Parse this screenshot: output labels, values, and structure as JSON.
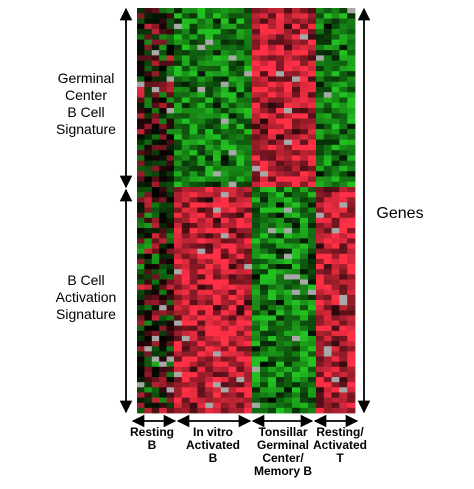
{
  "chart_data": {
    "type": "heatmap",
    "title": "",
    "xlabel": "",
    "ylabel": "Genes",
    "row_groups": [
      {
        "name": [
          "Germinal",
          "Center",
          "B Cell",
          "Signature"
        ],
        "pattern": "gc"
      },
      {
        "name": [
          "B Cell",
          "Activation",
          "Signature"
        ],
        "pattern": "act"
      }
    ],
    "column_groups": [
      {
        "name": [
          "Resting",
          "B"
        ],
        "key": "resting_b"
      },
      {
        "name": [
          "In vitro",
          "Activated",
          "B"
        ],
        "key": "invitro_b"
      },
      {
        "name": [
          "Tonsillar",
          "Germinal",
          "Center/",
          "Memory B"
        ],
        "key": "gc_mem_b"
      },
      {
        "name": [
          "Resting/",
          "Activated",
          "T"
        ],
        "key": "rest_act_t"
      }
    ],
    "group_expression": {
      "gc": {
        "resting_b": "mixed",
        "invitro_b": "low",
        "gc_mem_b": "high",
        "rest_act_t": "low"
      },
      "act": {
        "resting_b": "mixed",
        "invitro_b": "high",
        "gc_mem_b": "low",
        "rest_act_t": "high"
      }
    },
    "color_scale": {
      "high": "#ff3046",
      "neutral": "#000000",
      "low": "#22c020",
      "missing": "#a8a8a8"
    }
  }
}
